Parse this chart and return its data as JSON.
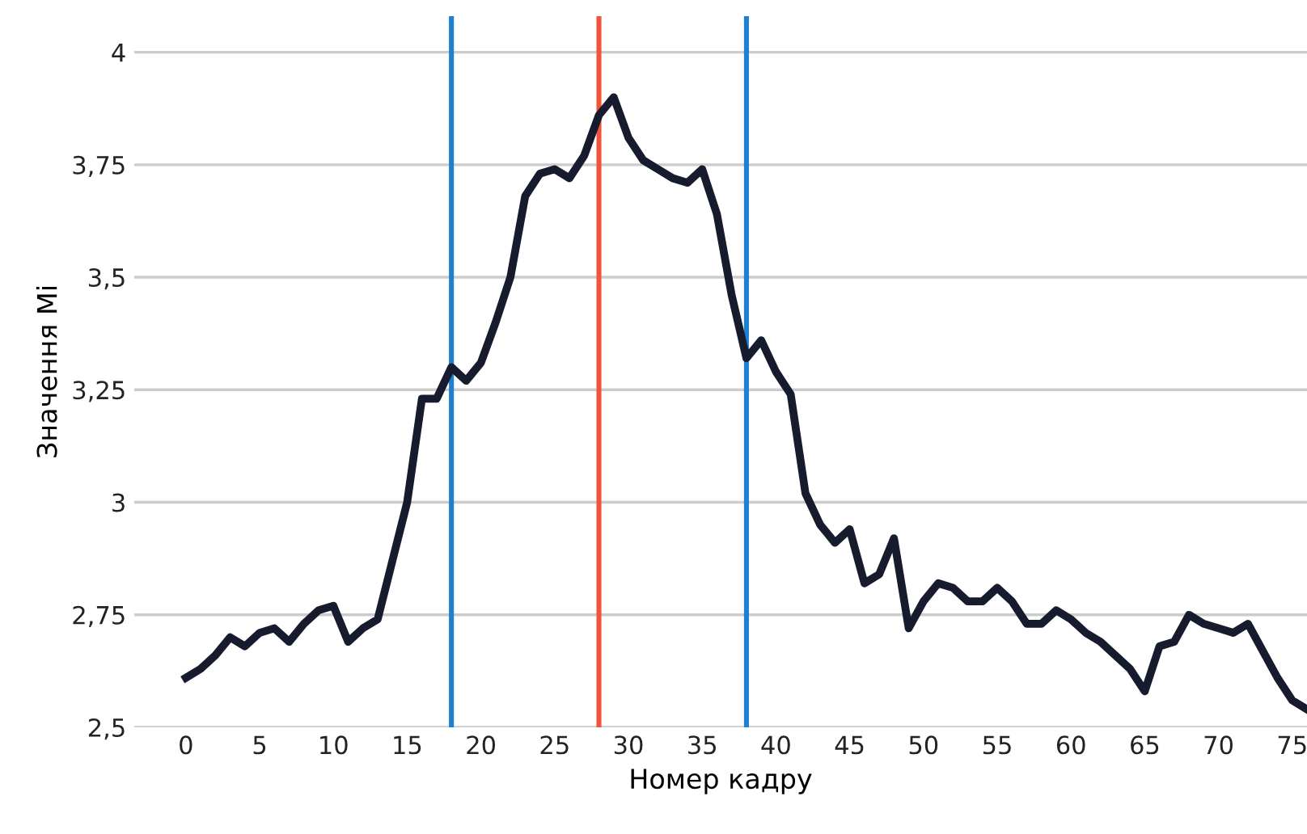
{
  "chart_data": {
    "type": "line",
    "xlabel": "Номер кадру",
    "ylabel": "Значення Mi",
    "x": [
      0,
      1,
      2,
      3,
      4,
      5,
      6,
      7,
      8,
      9,
      10,
      11,
      12,
      13,
      14,
      15,
      16,
      17,
      18,
      19,
      20,
      21,
      22,
      23,
      24,
      25,
      26,
      27,
      28,
      29,
      30,
      31,
      32,
      33,
      34,
      35,
      36,
      37,
      38,
      39,
      40,
      41,
      42,
      43,
      44,
      45,
      46,
      47,
      48,
      49,
      50,
      51,
      52,
      53,
      54,
      55,
      56,
      57,
      58,
      59,
      60,
      61,
      62,
      63,
      64,
      65,
      66,
      67,
      68,
      69,
      70,
      71,
      72,
      73,
      74,
      75,
      76
    ],
    "series": [
      {
        "color": "#161c2e",
        "values": [
          2.61,
          2.63,
          2.66,
          2.7,
          2.68,
          2.71,
          2.72,
          2.69,
          2.73,
          2.76,
          2.77,
          2.69,
          2.72,
          2.74,
          2.87,
          3.0,
          3.23,
          3.23,
          3.3,
          3.27,
          3.31,
          3.4,
          3.5,
          3.68,
          3.73,
          3.74,
          3.72,
          3.77,
          3.86,
          3.9,
          3.81,
          3.76,
          3.74,
          3.72,
          3.71,
          3.74,
          3.64,
          3.46,
          3.32,
          3.36,
          3.29,
          3.24,
          3.02,
          2.95,
          2.91,
          2.94,
          2.82,
          2.84,
          2.92,
          2.72,
          2.78,
          2.82,
          2.81,
          2.78,
          2.78,
          2.81,
          2.78,
          2.73,
          2.73,
          2.76,
          2.74,
          2.71,
          2.69,
          2.66,
          2.63,
          2.58,
          2.68,
          2.69,
          2.75,
          2.73,
          2.72,
          2.71,
          2.73,
          2.67,
          2.61,
          2.56,
          2.54
        ]
      }
    ],
    "xlim": [
      -3.5,
      76
    ],
    "ylim": [
      2.5,
      4.08
    ],
    "xticks": [
      0,
      5,
      10,
      15,
      20,
      25,
      30,
      35,
      40,
      45,
      50,
      55,
      60,
      65,
      70,
      75
    ],
    "yticks": [
      {
        "value": 2.5,
        "label": "2,5"
      },
      {
        "value": 2.75,
        "label": "2,75"
      },
      {
        "value": 3,
        "label": "3"
      },
      {
        "value": 3.25,
        "label": "3,25"
      },
      {
        "value": 3.5,
        "label": "3,5"
      },
      {
        "value": 3.75,
        "label": "3,75"
      },
      {
        "value": 4,
        "label": "4"
      }
    ],
    "grid": "y",
    "marker": "none",
    "line_style": "solid",
    "ref_lines": [
      {
        "axis": "x",
        "value": 18,
        "color": "#1f7fd0"
      },
      {
        "axis": "x",
        "value": 28,
        "color": "#f0553a"
      },
      {
        "axis": "x",
        "value": 38,
        "color": "#1f7fd0"
      }
    ]
  }
}
